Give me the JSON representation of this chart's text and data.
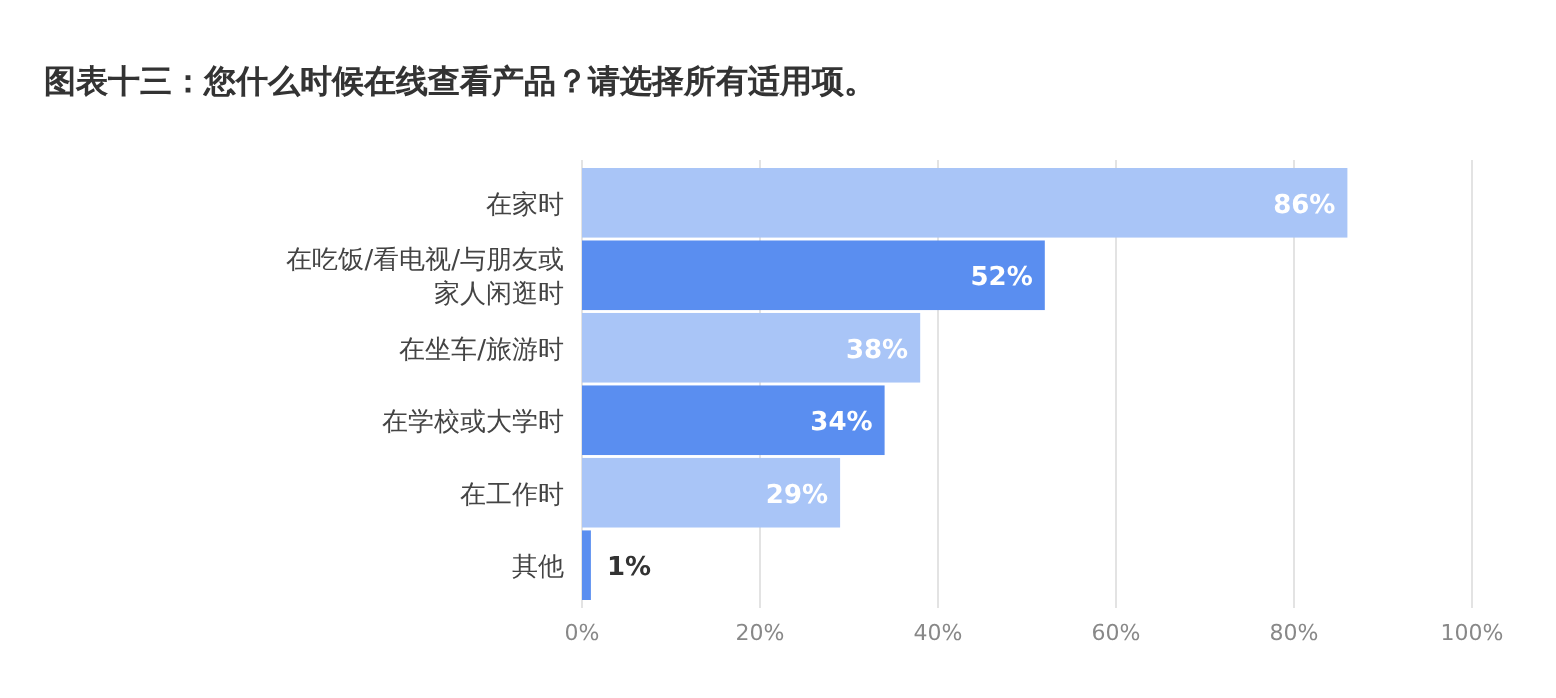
{
  "chart_data": {
    "type": "bar",
    "orientation": "horizontal",
    "title": "图表十三：您什么时候在线查看产品？请选择所有适用项。",
    "categories": [
      "在家时",
      "在吃饭/看电视/与朋友或家人闲逛时",
      "在坐车/旅游时",
      "在学校或大学时",
      "在工作时",
      "其他"
    ],
    "values": [
      86,
      52,
      38,
      34,
      29,
      1
    ],
    "colors": [
      "#a9c5f7",
      "#5a8ef0",
      "#a9c5f7",
      "#5a8ef0",
      "#a9c5f7",
      "#5a8ef0"
    ],
    "value_labels": [
      "86%",
      "52%",
      "38%",
      "34%",
      "29%",
      "1%"
    ],
    "xlim": [
      0,
      100
    ],
    "xticks": [
      {
        "value": 0,
        "label": "0%"
      },
      {
        "value": 20,
        "label": "20%"
      },
      {
        "value": 40,
        "label": "40%"
      },
      {
        "value": 60,
        "label": "60%"
      },
      {
        "value": 80,
        "label": "80%"
      },
      {
        "value": 100,
        "label": "100%"
      }
    ],
    "grid": "x"
  }
}
